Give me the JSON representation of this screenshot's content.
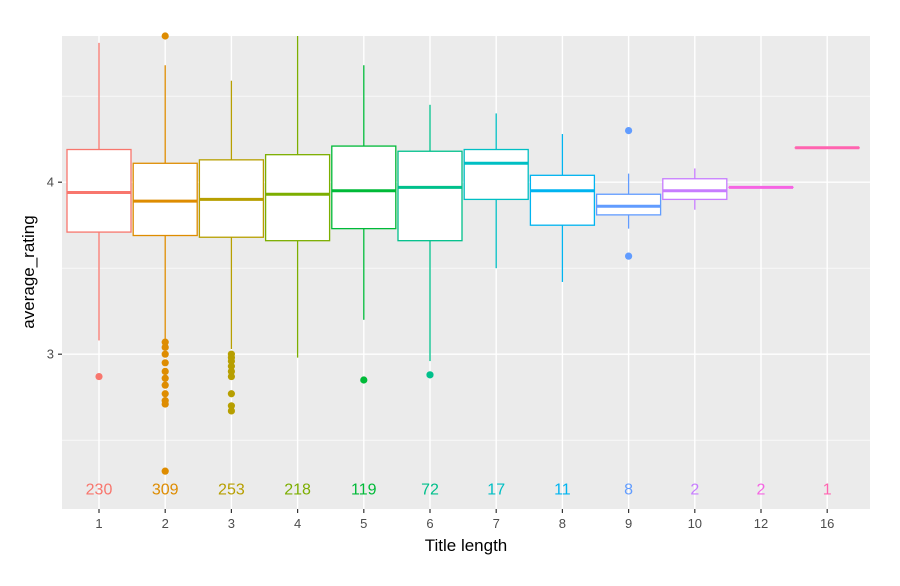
{
  "chart_data": {
    "type": "box",
    "xlabel": "Title length",
    "ylabel": "average_rating",
    "ylim": [
      2.1,
      4.85
    ],
    "y_ticks": [
      3,
      4
    ],
    "grid": true,
    "legend": "none",
    "count_label_y": 2.22,
    "categories": [
      "1",
      "2",
      "3",
      "4",
      "5",
      "6",
      "7",
      "8",
      "9",
      "10",
      "12",
      "16"
    ],
    "counts": [
      "230",
      "309",
      "253",
      "218",
      "119",
      "72",
      "17",
      "11",
      "8",
      "2",
      "2",
      "1"
    ],
    "colors": [
      "#F8766D",
      "#DE8C00",
      "#B79F00",
      "#7CAE00",
      "#00BA38",
      "#00C08B",
      "#00BFC4",
      "#00B4F0",
      "#619CFF",
      "#C77CFF",
      "#F564E3",
      "#FF64B0"
    ],
    "boxes": [
      {
        "whisker_low": 3.08,
        "q1": 3.71,
        "median": 3.94,
        "q3": 4.19,
        "whisker_high": 4.81,
        "outliers": [
          2.87
        ]
      },
      {
        "whisker_low": 3.09,
        "q1": 3.69,
        "median": 3.89,
        "q3": 4.11,
        "whisker_high": 4.68,
        "outliers": [
          4.85,
          3.07,
          3.04,
          3.0,
          2.95,
          2.9,
          2.86,
          2.82,
          2.77,
          2.73,
          2.71,
          2.32
        ]
      },
      {
        "whisker_low": 3.03,
        "q1": 3.68,
        "median": 3.9,
        "q3": 4.13,
        "whisker_high": 4.59,
        "outliers": [
          3.0,
          2.98,
          2.96,
          2.93,
          2.9,
          2.87,
          2.77,
          2.7,
          2.67
        ]
      },
      {
        "whisker_low": 2.98,
        "q1": 3.66,
        "median": 3.93,
        "q3": 4.16,
        "whisker_high": 4.85,
        "outliers": []
      },
      {
        "whisker_low": 3.2,
        "q1": 3.73,
        "median": 3.95,
        "q3": 4.21,
        "whisker_high": 4.68,
        "outliers": [
          2.85
        ]
      },
      {
        "whisker_low": 2.96,
        "q1": 3.66,
        "median": 3.97,
        "q3": 4.18,
        "whisker_high": 4.45,
        "outliers": [
          2.88
        ]
      },
      {
        "whisker_low": 3.5,
        "q1": 3.9,
        "median": 4.11,
        "q3": 4.19,
        "whisker_high": 4.4,
        "outliers": []
      },
      {
        "whisker_low": 3.42,
        "q1": 3.75,
        "median": 3.95,
        "q3": 4.04,
        "whisker_high": 4.28,
        "outliers": []
      },
      {
        "whisker_low": 3.73,
        "q1": 3.81,
        "median": 3.86,
        "q3": 3.93,
        "whisker_high": 4.05,
        "outliers": [
          4.3,
          3.57
        ]
      },
      {
        "whisker_low": 3.84,
        "q1": 3.9,
        "median": 3.95,
        "q3": 4.02,
        "whisker_high": 4.08,
        "outliers": []
      },
      {
        "whisker_low": 3.97,
        "q1": 3.97,
        "median": 3.97,
        "q3": 3.97,
        "whisker_high": 3.97,
        "outliers": []
      },
      {
        "whisker_low": 4.2,
        "q1": 4.2,
        "median": 4.2,
        "q3": 4.2,
        "whisker_high": 4.2,
        "outliers": []
      }
    ]
  }
}
